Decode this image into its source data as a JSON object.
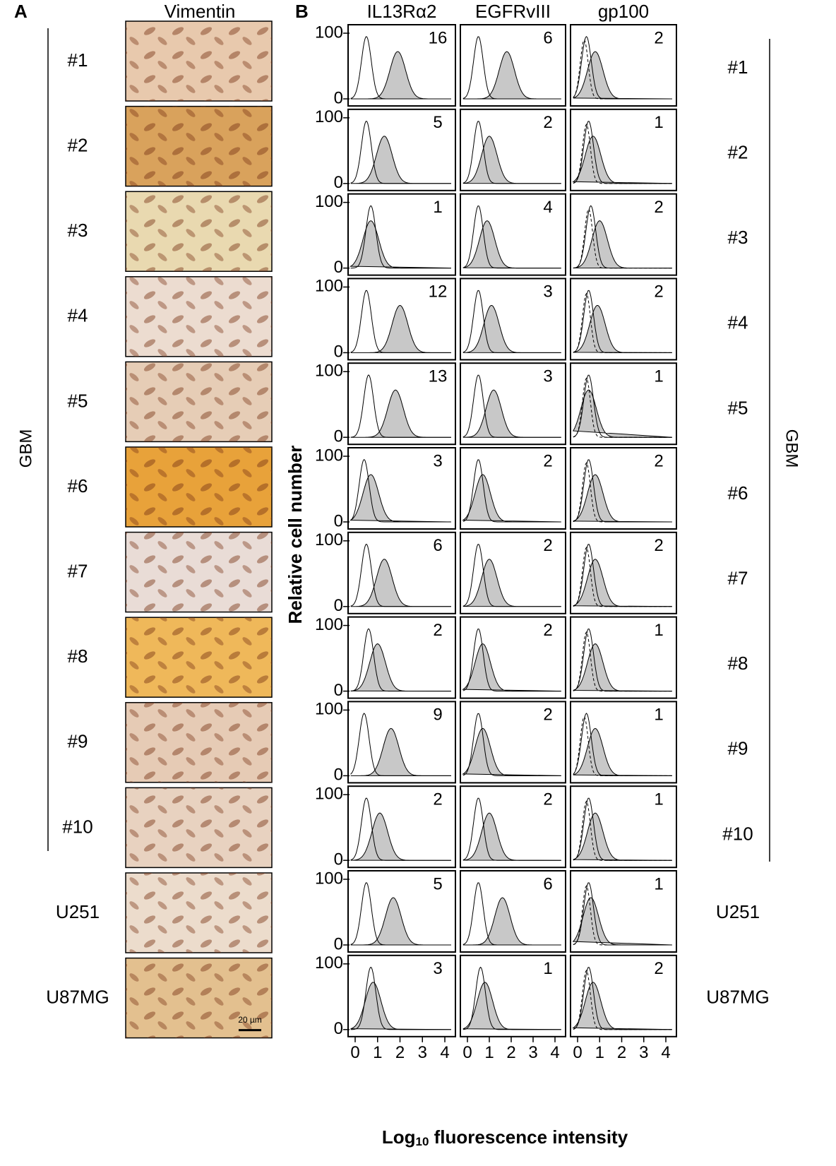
{
  "panel_labels": [
    "A",
    "B"
  ],
  "image_header": "Vimentin",
  "columns": [
    "IL13Rα2",
    "EGFRvIII",
    "gp100"
  ],
  "group_label": "GBM",
  "y_title": "Relative cell number",
  "x_title": [
    "Log",
    "10",
    " fluorescence intensity"
  ],
  "scale_bar": "20 µm",
  "yticks": [
    0,
    100
  ],
  "xticks": [
    0,
    1,
    2,
    3,
    4
  ],
  "rows": [
    {
      "label": "#1",
      "values": [
        16,
        6,
        2
      ],
      "peaks": [
        [
          0.5,
          1.9
        ],
        [
          0.5,
          1.8
        ],
        [
          0.4,
          0.8
        ]
      ]
    },
    {
      "label": "#2",
      "values": [
        5,
        2,
        1
      ],
      "peaks": [
        [
          0.5,
          1.3
        ],
        [
          0.5,
          1.0
        ],
        [
          0.5,
          0.7
        ]
      ]
    },
    {
      "label": "#3",
      "values": [
        1,
        4,
        2
      ],
      "peaks": [
        [
          0.7,
          0.7
        ],
        [
          0.5,
          0.9
        ],
        [
          0.6,
          1.0
        ]
      ]
    },
    {
      "label": "#4",
      "values": [
        12,
        3,
        2
      ],
      "peaks": [
        [
          0.5,
          2.0
        ],
        [
          0.5,
          1.1
        ],
        [
          0.5,
          0.9
        ]
      ]
    },
    {
      "label": "#5",
      "values": [
        13,
        3,
        1
      ],
      "peaks": [
        [
          0.6,
          1.8
        ],
        [
          0.5,
          1.2
        ],
        [
          0.5,
          0.5
        ]
      ]
    },
    {
      "label": "#6",
      "values": [
        3,
        2,
        2
      ],
      "peaks": [
        [
          0.4,
          0.7
        ],
        [
          0.5,
          0.7
        ],
        [
          0.5,
          0.8
        ]
      ]
    },
    {
      "label": "#7",
      "values": [
        6,
        2,
        2
      ],
      "peaks": [
        [
          0.5,
          1.3
        ],
        [
          0.5,
          1.0
        ],
        [
          0.5,
          0.8
        ]
      ]
    },
    {
      "label": "#8",
      "values": [
        2,
        2,
        1
      ],
      "peaks": [
        [
          0.6,
          1.0
        ],
        [
          0.5,
          0.7
        ],
        [
          0.5,
          0.8
        ]
      ]
    },
    {
      "label": "#9",
      "values": [
        9,
        2,
        1
      ],
      "peaks": [
        [
          0.4,
          1.6
        ],
        [
          0.5,
          0.7
        ],
        [
          0.4,
          0.8
        ]
      ]
    },
    {
      "label": "#10",
      "values": [
        2,
        2,
        1
      ],
      "peaks": [
        [
          0.5,
          1.1
        ],
        [
          0.5,
          1.0
        ],
        [
          0.5,
          0.8
        ]
      ]
    },
    {
      "label": "U251",
      "values": [
        5,
        6,
        1
      ],
      "peaks": [
        [
          0.5,
          1.7
        ],
        [
          0.5,
          1.6
        ],
        [
          0.5,
          0.6
        ]
      ]
    },
    {
      "label": "U87MG",
      "values": [
        3,
        1,
        2
      ],
      "peaks": [
        [
          0.7,
          0.8
        ],
        [
          0.6,
          0.8
        ],
        [
          0.5,
          0.7
        ]
      ]
    }
  ]
}
